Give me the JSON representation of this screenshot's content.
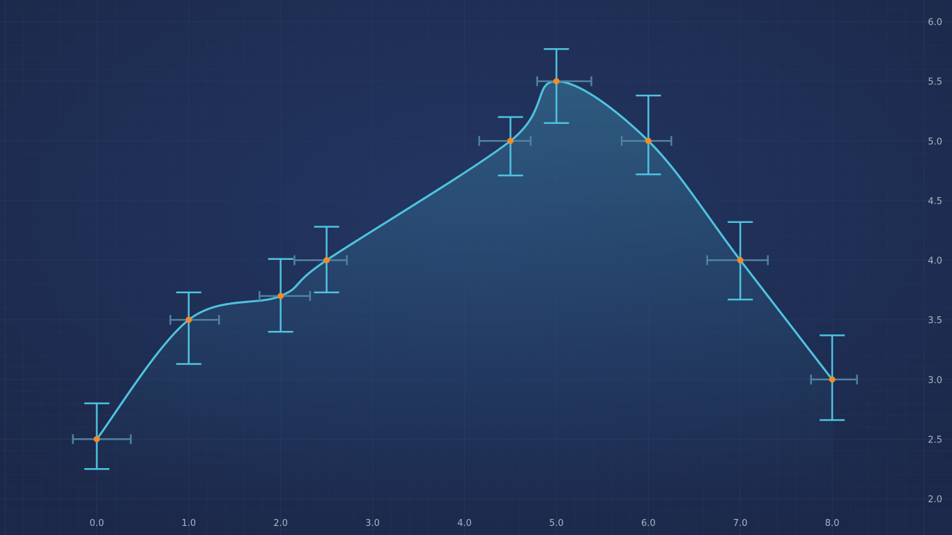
{
  "chart_data": {
    "type": "line",
    "title": "",
    "xlabel": "",
    "ylabel": "",
    "xlim": [
      -1.0,
      9.0
    ],
    "ylim": [
      2.0,
      6.0
    ],
    "x_ticks": [
      "0.0",
      "1.0",
      "2.0",
      "3.0",
      "4.0",
      "5.0",
      "6.0",
      "7.0",
      "8.0"
    ],
    "y_ticks": [
      "2.0",
      "2.5",
      "3.0",
      "3.5",
      "4.0",
      "4.5",
      "5.0",
      "5.5",
      "6.0"
    ],
    "y_axis_position": "right",
    "grid": true,
    "legend": "none",
    "interpolation": "smooth-spline",
    "area_fill": true,
    "series": [
      {
        "points": [
          {
            "x": 0.0,
            "y": 2.5,
            "y_err_low": 0.25,
            "y_err_high": 0.3,
            "x_err_low": 0.26,
            "x_err_high": 0.37
          },
          {
            "x": 1.0,
            "y": 3.5,
            "y_err_low": 0.37,
            "y_err_high": 0.23,
            "x_err_low": 0.2,
            "x_err_high": 0.33
          },
          {
            "x": 2.0,
            "y": 3.7,
            "y_err_low": 0.3,
            "y_err_high": 0.31,
            "x_err_low": 0.23,
            "x_err_high": 0.32
          },
          {
            "x": 2.5,
            "y": 4.0,
            "y_err_low": 0.27,
            "y_err_high": 0.28,
            "x_err_low": 0.35,
            "x_err_high": 0.22
          },
          {
            "x": 4.5,
            "y": 5.0,
            "y_err_low": 0.29,
            "y_err_high": 0.2,
            "x_err_low": 0.34,
            "x_err_high": 0.22
          },
          {
            "x": 5.0,
            "y": 5.5,
            "y_err_low": 0.35,
            "y_err_high": 0.27,
            "x_err_low": 0.21,
            "x_err_high": 0.38
          },
          {
            "x": 6.0,
            "y": 5.0,
            "y_err_low": 0.28,
            "y_err_high": 0.38,
            "x_err_low": 0.29,
            "x_err_high": 0.25
          },
          {
            "x": 7.0,
            "y": 4.0,
            "y_err_low": 0.33,
            "y_err_high": 0.32,
            "x_err_low": 0.36,
            "x_err_high": 0.3
          },
          {
            "x": 8.0,
            "y": 3.0,
            "y_err_low": 0.34,
            "y_err_high": 0.37,
            "x_err_low": 0.23,
            "x_err_high": 0.27
          }
        ]
      }
    ]
  },
  "colors": {
    "background": "#1c2a4e",
    "grid": "#2a3a60",
    "line": "#4fc3e0",
    "y_error_bar": "#4fc3e0",
    "x_error_bar": "#4f83a0",
    "marker": "#f28c28",
    "tick_label": "#a9b4c7"
  }
}
